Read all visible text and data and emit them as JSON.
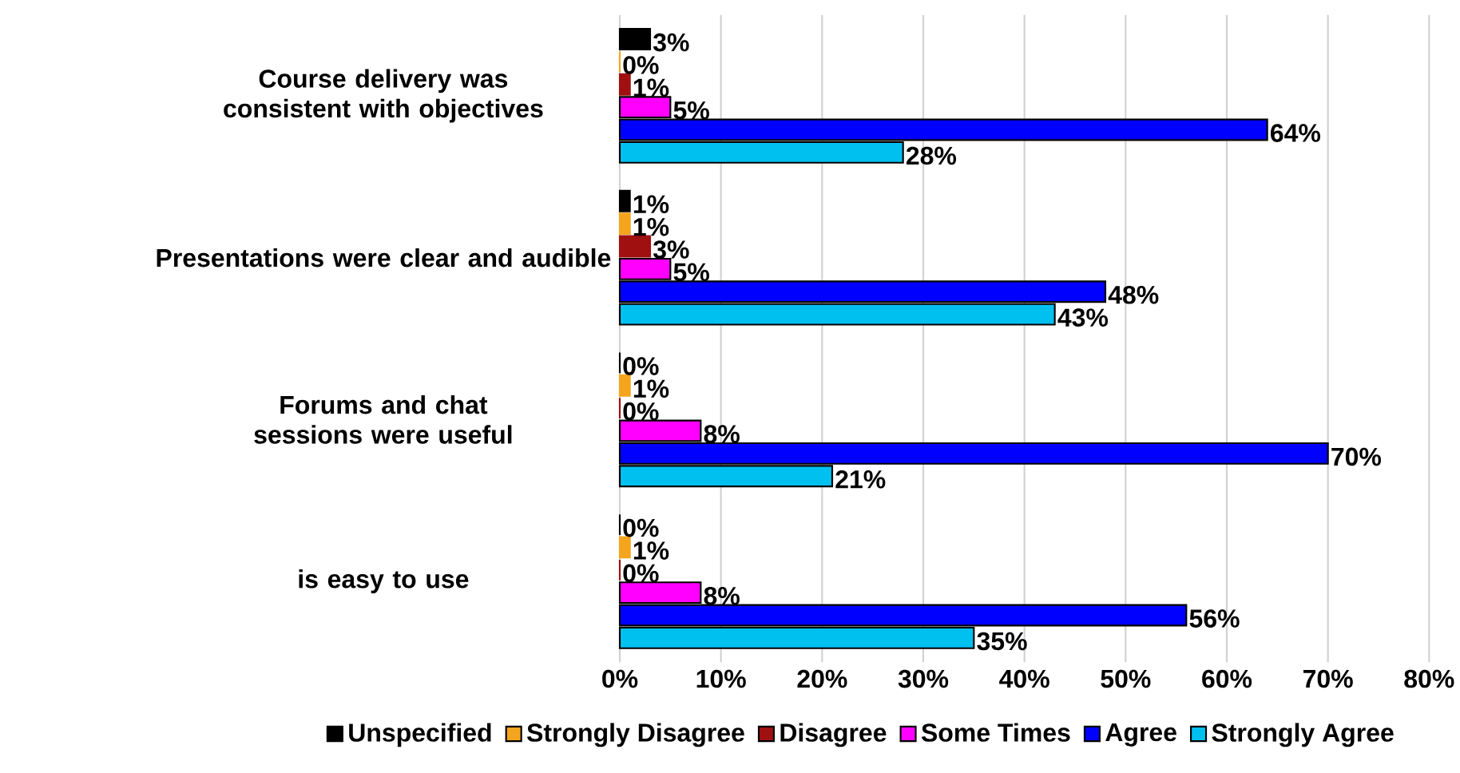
{
  "chart_data": {
    "type": "bar",
    "orientation": "horizontal",
    "categories": [
      "Course delivery was consistent with objectives",
      "Presentations were clear and audible",
      "Forums and chat sessions were useful",
      "is easy to use"
    ],
    "series": [
      {
        "name": "Unspecified",
        "color": "#000000",
        "values": [
          3,
          1,
          0,
          0
        ],
        "value_labels": [
          "3%",
          "1%",
          "0%",
          "0%"
        ]
      },
      {
        "name": "Strongly Disagree",
        "color": "#f5a41e",
        "values": [
          0,
          1,
          1,
          1
        ],
        "value_labels": [
          "0%",
          "1%",
          "1%",
          "1%"
        ]
      },
      {
        "name": "Disagree",
        "color": "#a01010",
        "values": [
          1,
          3,
          0,
          0
        ],
        "value_labels": [
          "1%",
          "3%",
          "0%",
          "0%"
        ]
      },
      {
        "name": "Some Times",
        "color": "#ff00ff",
        "values": [
          5,
          5,
          8,
          8
        ],
        "value_labels": [
          "5%",
          "5%",
          "8%",
          "8%"
        ]
      },
      {
        "name": "Agree",
        "color": "#0000ff",
        "values": [
          64,
          48,
          70,
          56
        ],
        "value_labels": [
          "64%",
          "48%",
          "70%",
          "56%"
        ]
      },
      {
        "name": "Strongly Agree",
        "color": "#00c0f0",
        "values": [
          28,
          43,
          21,
          35
        ],
        "value_labels": [
          "28%",
          "43%",
          "21%",
          "35%"
        ]
      }
    ],
    "xlim": [
      0,
      80
    ],
    "xticks": [
      {
        "value": 0,
        "label": "0%"
      },
      {
        "value": 10,
        "label": "10%"
      },
      {
        "value": 20,
        "label": "20%"
      },
      {
        "value": 30,
        "label": "30%"
      },
      {
        "value": 40,
        "label": "40%"
      },
      {
        "value": 50,
        "label": "50%"
      },
      {
        "value": 60,
        "label": "60%"
      },
      {
        "value": 70,
        "label": "70%"
      },
      {
        "value": 80,
        "label": "80%"
      }
    ],
    "grid": "x",
    "legend": "bottom"
  }
}
